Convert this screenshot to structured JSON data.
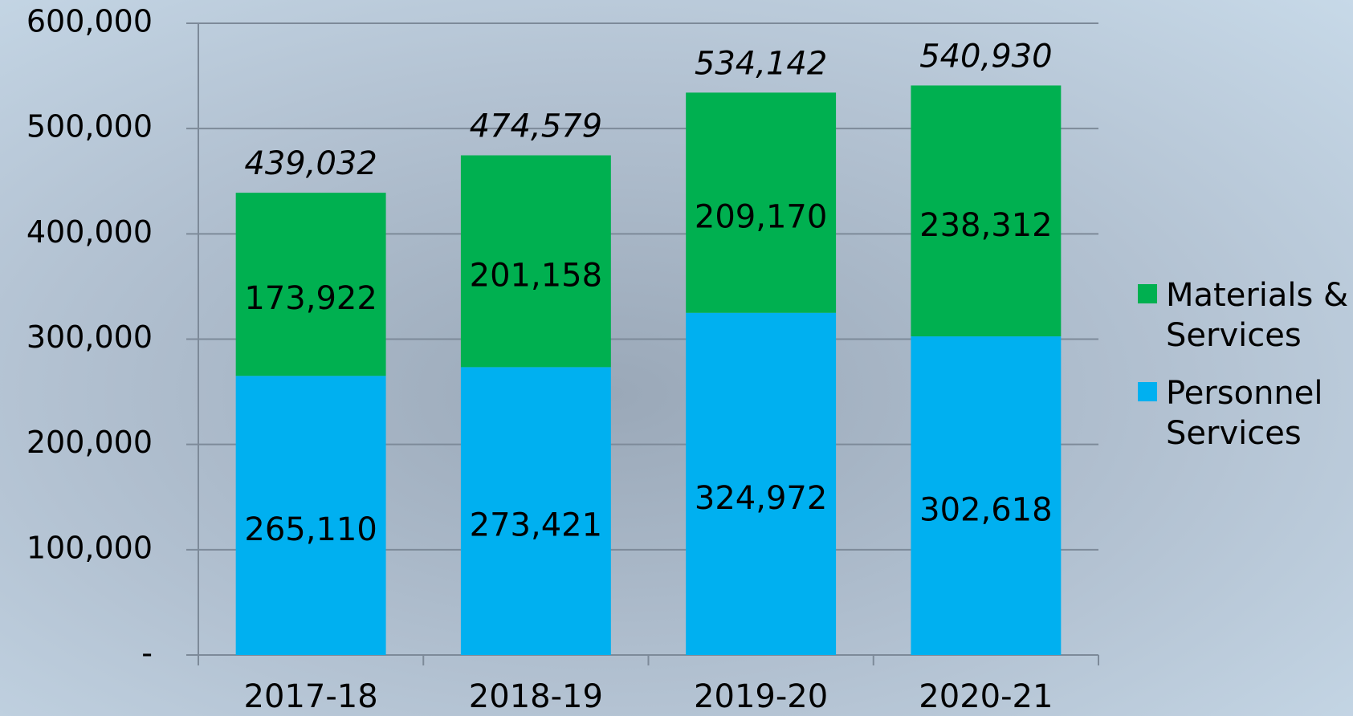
{
  "chart_data": {
    "type": "stacked_bar",
    "categories": [
      "2017-18",
      "2018-19",
      "2019-20",
      "2020-21"
    ],
    "series": [
      {
        "name": "Personnel Services",
        "color": "#00b0f0",
        "values": [
          265110,
          273421,
          324972,
          302618
        ],
        "value_labels": [
          "265,110",
          "273,421",
          "324,972",
          "302,618"
        ]
      },
      {
        "name": "Materials & Services",
        "color": "#00b050",
        "values": [
          173922,
          201158,
          209170,
          238312
        ],
        "value_labels": [
          "173,922",
          "201,158",
          "209,170",
          "238,312"
        ]
      }
    ],
    "totals": {
      "values": [
        439032,
        474579,
        534142,
        540930
      ],
      "value_labels": [
        "439,032",
        "474,579",
        "534,142",
        "540,930"
      ]
    },
    "ylim": [
      0,
      600000
    ],
    "yticks": [
      {
        "value": 0,
        "label": "-"
      },
      {
        "value": 100000,
        "label": "100,000"
      },
      {
        "value": 200000,
        "label": "200,000"
      },
      {
        "value": 300000,
        "label": "300,000"
      },
      {
        "value": 400000,
        "label": "400,000"
      },
      {
        "value": 500000,
        "label": "500,000"
      },
      {
        "value": 600000,
        "label": "600,000"
      }
    ],
    "grid": true,
    "legend": "right"
  }
}
